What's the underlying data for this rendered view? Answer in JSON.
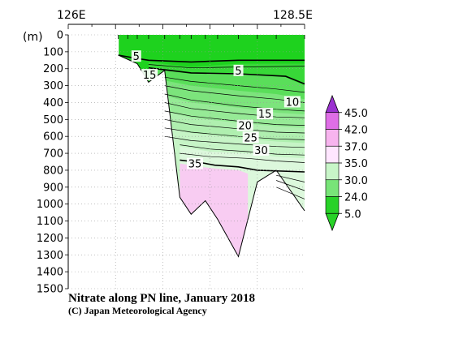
{
  "chart_data": {
    "type": "contour",
    "title": "Nitrate along PN line, January 2018",
    "credit": "(C) Japan Meteorological Agency",
    "xlabel_left": "126E",
    "xlabel_right": "128.5E",
    "ylabel": "(m)",
    "xlim": [
      126,
      128.5
    ],
    "ylim": [
      0,
      1500
    ],
    "y_ticks": [
      0,
      100,
      200,
      300,
      400,
      500,
      600,
      700,
      800,
      900,
      1000,
      1100,
      1200,
      1300,
      1400,
      1500
    ],
    "y_tick_labels": [
      "0",
      "100",
      "200",
      "300",
      "400",
      "500",
      "600",
      "700",
      "800",
      "900",
      "1000",
      "1100",
      "1200",
      "1300",
      "1400",
      "1500"
    ],
    "contour_labels": [
      {
        "text": "5",
        "x": 127.8,
        "y": 215
      },
      {
        "text": "10",
        "x": 128.37,
        "y": 400
      },
      {
        "text": "15",
        "x": 128.08,
        "y": 470
      },
      {
        "text": "20",
        "x": 127.87,
        "y": 540
      },
      {
        "text": "25",
        "x": 127.93,
        "y": 610
      },
      {
        "text": "30",
        "x": 128.04,
        "y": 685
      },
      {
        "text": "35",
        "x": 127.34,
        "y": 765
      },
      {
        "text": "15",
        "x": 126.86,
        "y": 240
      },
      {
        "text": "5",
        "x": 126.72,
        "y": 130
      }
    ],
    "colorbar": {
      "labels": [
        "45.0",
        "42.0",
        "37.0",
        "35.0",
        "30.0",
        "24.0",
        "5.0"
      ],
      "colors": [
        "#9b32d0",
        "#df6ee6",
        "#f7b4ee",
        "#ffe6ff",
        "#c8f5c8",
        "#78e478",
        "#28d228"
      ]
    },
    "bottom_profile": [
      {
        "x": 126.53,
        "y": 120
      },
      {
        "x": 126.73,
        "y": 170
      },
      {
        "x": 126.85,
        "y": 280
      },
      {
        "x": 127.02,
        "y": 210
      },
      {
        "x": 127.18,
        "y": 960
      },
      {
        "x": 127.3,
        "y": 1060
      },
      {
        "x": 127.45,
        "y": 980
      },
      {
        "x": 127.58,
        "y": 1090
      },
      {
        "x": 127.8,
        "y": 1310
      },
      {
        "x": 128.0,
        "y": 870
      },
      {
        "x": 128.2,
        "y": 800
      },
      {
        "x": 128.5,
        "y": 1040
      }
    ],
    "station_x": [
      126.53,
      126.63,
      126.73,
      126.85,
      127.02,
      127.18,
      127.3,
      127.45,
      127.58,
      127.8,
      128.0,
      128.2,
      128.5
    ]
  }
}
